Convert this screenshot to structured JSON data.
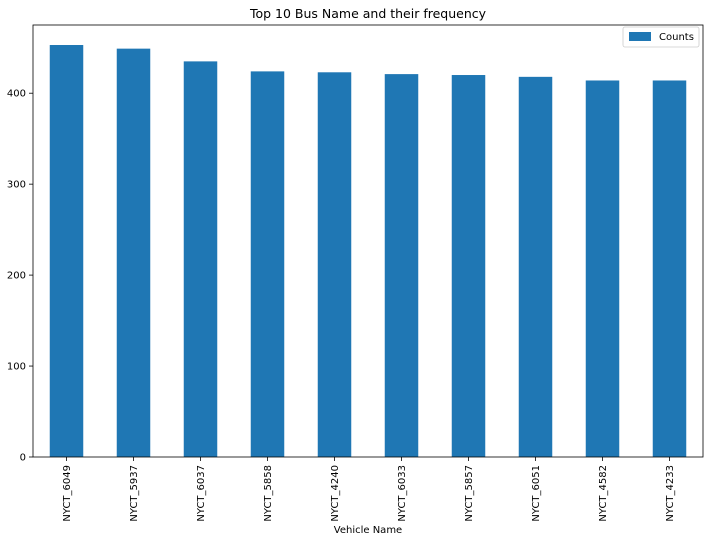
{
  "chart_data": {
    "type": "bar",
    "title": "Top 10 Bus Name and their frequency",
    "xlabel": "Vehicle Name",
    "ylabel": "",
    "categories": [
      "NYCT_6049",
      "NYCT_5937",
      "NYCT_6037",
      "NYCT_5858",
      "NYCT_4240",
      "NYCT_6033",
      "NYCT_5857",
      "NYCT_6051",
      "NYCT_4582",
      "NYCT_4233"
    ],
    "series": [
      {
        "name": "Counts",
        "values": [
          453,
          449,
          435,
          424,
          423,
          421,
          420,
          418,
          414,
          414
        ],
        "color": "#1f77b4"
      }
    ],
    "ylim": [
      0,
      475
    ],
    "yticks": [
      0,
      100,
      200,
      300,
      400
    ],
    "grid": false,
    "legend": "top-right"
  }
}
